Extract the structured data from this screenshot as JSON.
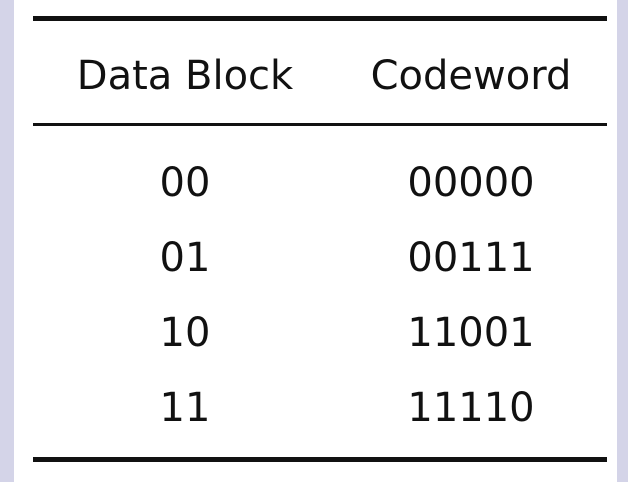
{
  "table": {
    "headers": [
      "Data Block",
      "Codeword"
    ],
    "rows": [
      [
        "00",
        "00000"
      ],
      [
        "01",
        "00111"
      ],
      [
        "10",
        "11001"
      ],
      [
        "11",
        "11110"
      ]
    ]
  }
}
